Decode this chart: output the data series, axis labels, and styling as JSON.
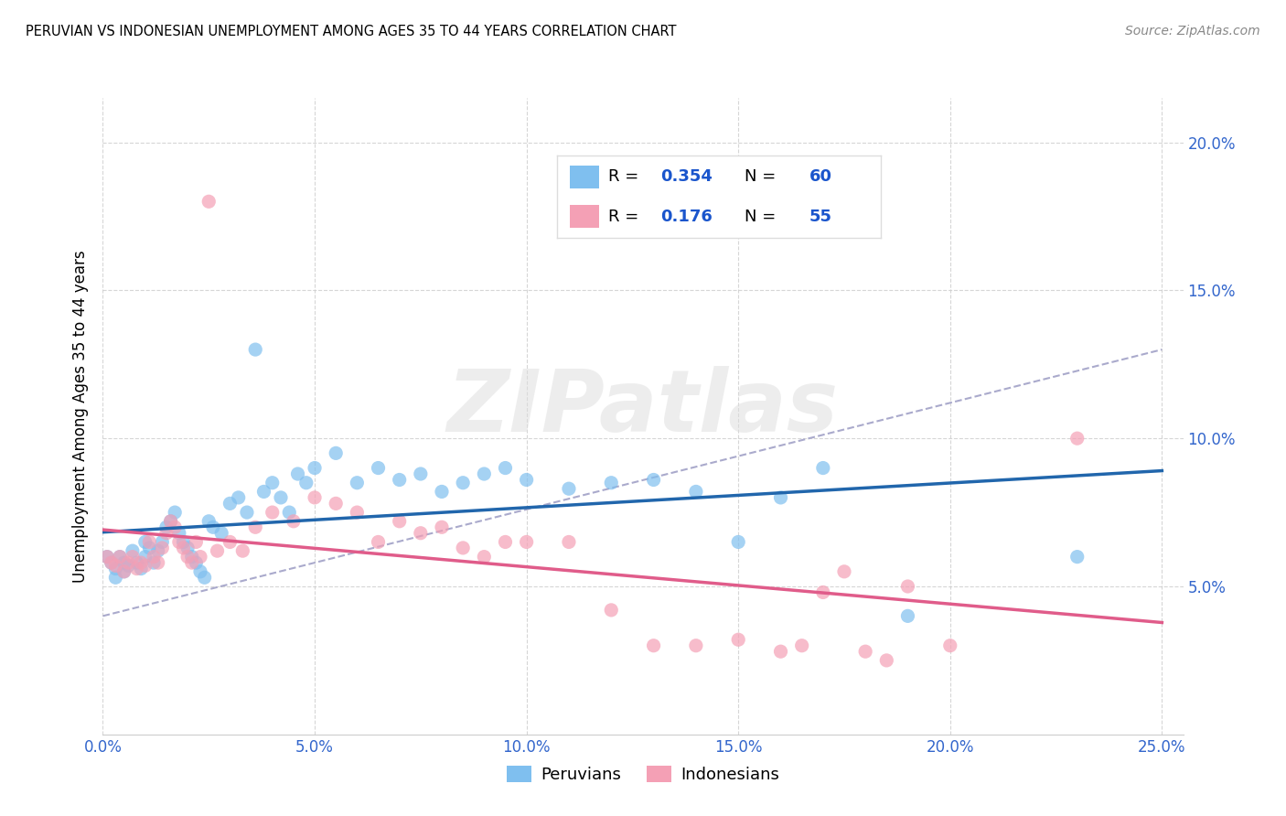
{
  "title": "PERUVIAN VS INDONESIAN UNEMPLOYMENT AMONG AGES 35 TO 44 YEARS CORRELATION CHART",
  "source": "Source: ZipAtlas.com",
  "ylabel": "Unemployment Among Ages 35 to 44 years",
  "xlabel_ticks": [
    "0.0%",
    "5.0%",
    "10.0%",
    "15.0%",
    "20.0%",
    "25.0%"
  ],
  "xlabel_vals": [
    0.0,
    0.05,
    0.1,
    0.15,
    0.2,
    0.25
  ],
  "ylabel_ticks": [
    "5.0%",
    "10.0%",
    "15.0%",
    "20.0%"
  ],
  "ylabel_vals": [
    0.05,
    0.1,
    0.15,
    0.2
  ],
  "xlim": [
    0.0,
    0.255
  ],
  "ylim": [
    0.0,
    0.215
  ],
  "peruvian_R": 0.354,
  "peruvian_N": 60,
  "indonesian_R": 0.176,
  "indonesian_N": 55,
  "blue_color": "#7fbfef",
  "pink_color": "#f4a0b5",
  "blue_line_color": "#2166ac",
  "pink_line_color": "#e05c8a",
  "trend_line_color": "#aaaacc",
  "legend_R_color": "#1a55cc",
  "background_color": "#ffffff",
  "grid_color": "#cccccc",
  "peruvian_x": [
    0.001,
    0.002,
    0.003,
    0.003,
    0.004,
    0.005,
    0.005,
    0.006,
    0.007,
    0.008,
    0.009,
    0.01,
    0.01,
    0.011,
    0.012,
    0.013,
    0.014,
    0.015,
    0.016,
    0.017,
    0.018,
    0.019,
    0.02,
    0.021,
    0.022,
    0.023,
    0.024,
    0.025,
    0.026,
    0.028,
    0.03,
    0.032,
    0.034,
    0.036,
    0.038,
    0.04,
    0.042,
    0.044,
    0.046,
    0.048,
    0.05,
    0.055,
    0.06,
    0.065,
    0.07,
    0.075,
    0.08,
    0.085,
    0.09,
    0.095,
    0.1,
    0.11,
    0.12,
    0.13,
    0.14,
    0.15,
    0.16,
    0.17,
    0.19,
    0.23
  ],
  "peruvian_y": [
    0.06,
    0.058,
    0.056,
    0.053,
    0.06,
    0.055,
    0.058,
    0.057,
    0.062,
    0.058,
    0.056,
    0.06,
    0.065,
    0.063,
    0.058,
    0.062,
    0.065,
    0.07,
    0.072,
    0.075,
    0.068,
    0.065,
    0.063,
    0.06,
    0.058,
    0.055,
    0.053,
    0.072,
    0.07,
    0.068,
    0.078,
    0.08,
    0.075,
    0.13,
    0.082,
    0.085,
    0.08,
    0.075,
    0.088,
    0.085,
    0.09,
    0.095,
    0.085,
    0.09,
    0.086,
    0.088,
    0.082,
    0.085,
    0.088,
    0.09,
    0.086,
    0.083,
    0.085,
    0.086,
    0.082,
    0.065,
    0.08,
    0.09,
    0.04,
    0.06
  ],
  "indonesian_x": [
    0.001,
    0.002,
    0.003,
    0.004,
    0.005,
    0.006,
    0.007,
    0.008,
    0.009,
    0.01,
    0.011,
    0.012,
    0.013,
    0.014,
    0.015,
    0.016,
    0.017,
    0.018,
    0.019,
    0.02,
    0.021,
    0.022,
    0.023,
    0.025,
    0.027,
    0.03,
    0.033,
    0.036,
    0.04,
    0.045,
    0.05,
    0.055,
    0.06,
    0.065,
    0.07,
    0.075,
    0.08,
    0.085,
    0.09,
    0.095,
    0.1,
    0.11,
    0.12,
    0.13,
    0.14,
    0.15,
    0.16,
    0.165,
    0.17,
    0.175,
    0.18,
    0.185,
    0.19,
    0.2,
    0.23
  ],
  "indonesian_y": [
    0.06,
    0.058,
    0.057,
    0.06,
    0.055,
    0.058,
    0.06,
    0.056,
    0.058,
    0.057,
    0.065,
    0.06,
    0.058,
    0.063,
    0.068,
    0.072,
    0.07,
    0.065,
    0.063,
    0.06,
    0.058,
    0.065,
    0.06,
    0.18,
    0.062,
    0.065,
    0.062,
    0.07,
    0.075,
    0.072,
    0.08,
    0.078,
    0.075,
    0.065,
    0.072,
    0.068,
    0.07,
    0.063,
    0.06,
    0.065,
    0.065,
    0.065,
    0.042,
    0.03,
    0.03,
    0.032,
    0.028,
    0.03,
    0.048,
    0.055,
    0.028,
    0.025,
    0.05,
    0.03,
    0.1
  ],
  "watermark_text": "ZIPatlas",
  "legend_label_blue": "Peruvians",
  "legend_label_pink": "Indonesians"
}
